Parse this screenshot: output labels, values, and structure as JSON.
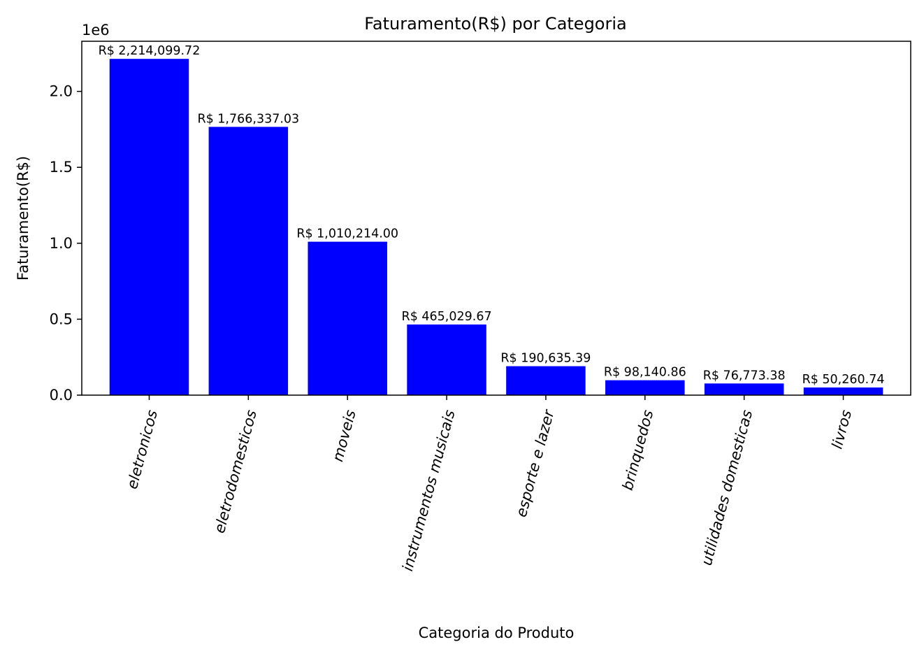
{
  "chart_data": {
    "type": "bar",
    "title": "Faturamento(R$) por Categoria",
    "xlabel": "Categoria do Produto",
    "ylabel": "Faturamento(R$)",
    "y_offset_text": "1e6",
    "ylim": [
      0,
      2330000
    ],
    "yticks": [
      0.0,
      0.5,
      1.0,
      1.5,
      2.0
    ],
    "ytick_labels": [
      "0.0",
      "0.5",
      "1.0",
      "1.5",
      "2.0"
    ],
    "ytick_scale": 1000000,
    "categories": [
      "eletronicos",
      "eletrodomesticos",
      "moveis",
      "instrumentos musicais",
      "esporte e lazer",
      "brinquedos",
      "utilidades domesticas",
      "livros"
    ],
    "values": [
      2214099.72,
      1766337.03,
      1010214.0,
      465029.67,
      190635.39,
      98140.86,
      76773.38,
      50260.74
    ],
    "data_labels": [
      "R$ 2,214,099.72",
      "R$ 1,766,337.03",
      "R$ 1,010,214.00",
      "R$ 465,029.67",
      "R$ 190,635.39",
      "R$ 98,140.86",
      "R$ 76,773.38",
      "R$ 50,260.74"
    ],
    "bar_color": "#0000ff",
    "category_label_rotation": 75,
    "grid": false,
    "legend": "none"
  }
}
